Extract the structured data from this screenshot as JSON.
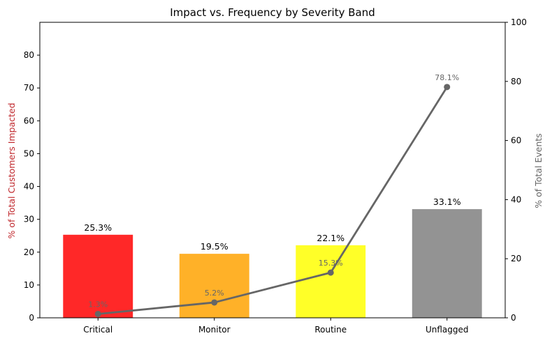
{
  "chart_data": {
    "type": "bar",
    "title": "Impact vs. Frequency by Severity Band",
    "categories": [
      "Critical",
      "Monitor",
      "Routine",
      "Unflagged"
    ],
    "series": [
      {
        "name": "% of Total Customers Impacted",
        "type": "bar",
        "axis": "left",
        "values": [
          25.3,
          19.5,
          22.1,
          33.1
        ],
        "labels": [
          "25.3%",
          "19.5%",
          "22.1%",
          "33.1%"
        ],
        "colors": [
          "#ff2828",
          "#ffb128",
          "#ffff28",
          "#939393"
        ]
      },
      {
        "name": "% of Total Events",
        "type": "line",
        "axis": "right",
        "values": [
          1.3,
          5.2,
          15.3,
          78.1
        ],
        "labels": [
          "1.3%",
          "5.2%",
          "15.3%",
          "78.1%"
        ],
        "color": "#666666"
      }
    ],
    "y_left": {
      "label": "% of Total Customers Impacted",
      "ylim": [
        0,
        90
      ],
      "ticks": [
        0,
        10,
        20,
        30,
        40,
        50,
        60,
        70,
        80
      ],
      "label_color": "#c0282d"
    },
    "y_right": {
      "label": "% of Total Events",
      "ylim": [
        0,
        100
      ],
      "ticks": [
        0,
        20,
        40,
        60,
        80,
        100
      ],
      "label_color": "#666666"
    },
    "grid": false,
    "legend": "none"
  }
}
